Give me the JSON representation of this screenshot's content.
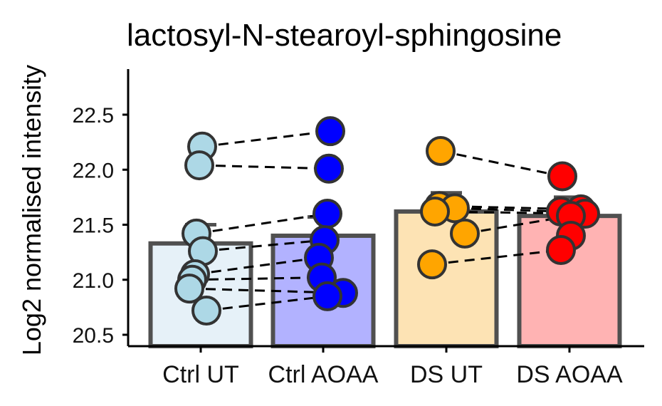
{
  "chart_data": {
    "type": "bar",
    "title": "lactosyl-N-stearoyl-sphingosine",
    "xlabel": "",
    "ylabel": "Log2 normalised intensity",
    "ylim": [
      20.4,
      22.9
    ],
    "yticks": [
      "20.5",
      "21.0",
      "21.5",
      "22.0",
      "22.5"
    ],
    "categories": [
      "Ctrl UT",
      "Ctrl AOAA",
      "DS UT",
      "DS AOAA"
    ],
    "values": [
      21.33,
      21.4,
      21.62,
      21.58
    ],
    "bar_colors": [
      "#e6f1f8",
      "#b2b2ff",
      "#fde3b4",
      "#ffb3b3"
    ],
    "point_colors": [
      "#add8e6",
      "#0000ff",
      "#ffa500",
      "#ff0000"
    ],
    "points": [
      [
        22.21,
        22.04,
        21.42,
        21.26,
        21.05,
        21.0,
        20.92,
        20.72
      ],
      [
        22.35,
        22.01,
        21.6,
        21.36,
        21.2,
        21.02,
        20.88,
        20.85
      ],
      [
        22.17,
        21.67,
        21.65,
        21.62,
        21.42,
        21.14
      ],
      [
        21.94,
        21.64,
        21.62,
        21.6,
        21.58,
        21.4,
        21.27
      ]
    ],
    "pairs": [
      [
        0,
        22.21,
        1,
        22.35
      ],
      [
        0,
        22.04,
        1,
        22.01
      ],
      [
        0,
        21.42,
        1,
        21.6
      ],
      [
        0,
        21.26,
        1,
        21.36
      ],
      [
        0,
        21.05,
        1,
        21.2
      ],
      [
        0,
        21.0,
        1,
        21.02
      ],
      [
        0,
        20.92,
        1,
        20.88
      ],
      [
        0,
        20.72,
        1,
        20.85
      ],
      [
        2,
        22.17,
        3,
        21.94
      ],
      [
        2,
        21.67,
        3,
        21.64
      ],
      [
        2,
        21.65,
        3,
        21.62
      ],
      [
        2,
        21.62,
        3,
        21.6
      ],
      [
        2,
        21.42,
        3,
        21.58
      ],
      [
        2,
        21.14,
        3,
        21.27
      ]
    ],
    "grid": false,
    "legend": "none"
  }
}
